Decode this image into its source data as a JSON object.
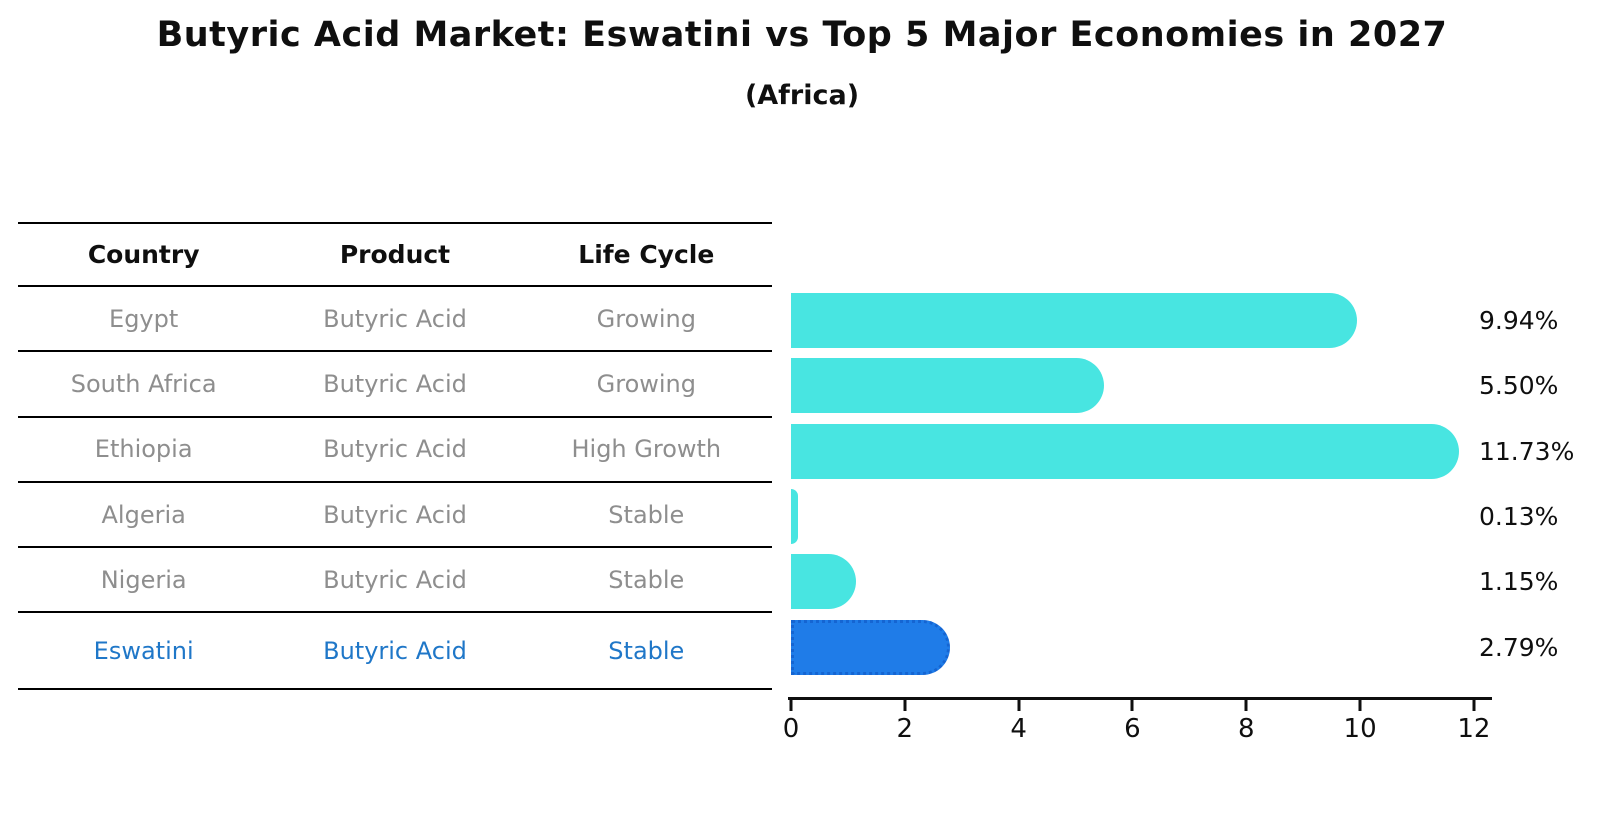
{
  "title": "Butyric Acid Market: Eswatini vs Top 5 Major Economies in 2027",
  "subtitle": "(Africa)",
  "table": {
    "headers": [
      "Country",
      "Product",
      "Life Cycle"
    ],
    "rows": [
      {
        "country": "Egypt",
        "product": "Butyric Acid",
        "life_cycle": "Growing",
        "highlight": false
      },
      {
        "country": "South Africa",
        "product": "Butyric Acid",
        "life_cycle": "Growing",
        "highlight": false
      },
      {
        "country": "Ethiopia",
        "product": "Butyric Acid",
        "life_cycle": "High Growth",
        "highlight": false
      },
      {
        "country": "Algeria",
        "product": "Butyric Acid",
        "life_cycle": "Stable",
        "highlight": false
      },
      {
        "country": "Nigeria",
        "product": "Butyric Acid",
        "life_cycle": "Stable",
        "highlight": false
      },
      {
        "country": "Eswatini",
        "product": "Butyric Acid",
        "life_cycle": "Stable",
        "highlight": true
      }
    ]
  },
  "chart_data": {
    "type": "bar",
    "orientation": "horizontal",
    "title": "Butyric Acid Market: Eswatini vs Top 5 Major Economies in 2027",
    "subtitle": "(Africa)",
    "categories": [
      "Egypt",
      "South Africa",
      "Ethiopia",
      "Algeria",
      "Nigeria",
      "Eswatini"
    ],
    "values": [
      9.94,
      5.5,
      11.73,
      0.13,
      1.15,
      2.79
    ],
    "value_labels": [
      "9.94%",
      "5.50%",
      "11.73%",
      "0.13%",
      "1.15%",
      "2.79%"
    ],
    "xticks": [
      0,
      2,
      4,
      6,
      8,
      10,
      12
    ],
    "xlabel": "",
    "ylabel": "",
    "xlim": [
      0,
      12.3
    ],
    "grid": false,
    "legend": false,
    "highlight_index": 5,
    "bar_color": "#48e5e1",
    "highlight_color": "#1f7ce8",
    "highlight_border_color": "#1565d2",
    "highlight_text_color": "#1f77c8",
    "row_text_color": "#8e8e8e"
  }
}
